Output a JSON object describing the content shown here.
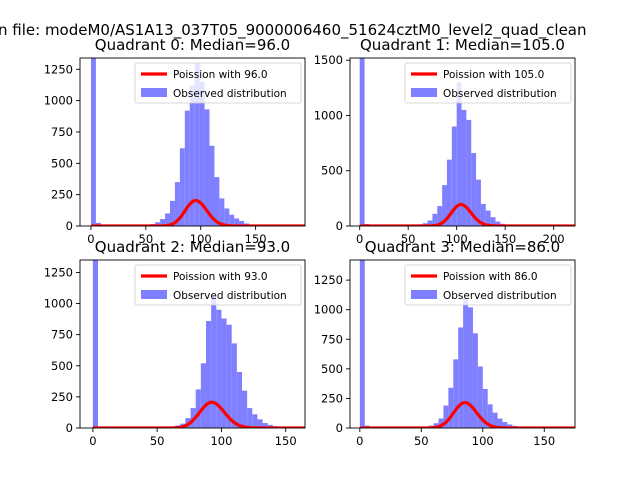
{
  "figure": {
    "suptitle": "n file: modeM0/AS1A13_037T05_9000006460_51624cztM0_level2_quad_clean",
    "background": "#ffffff"
  },
  "colors": {
    "hist": "#7f7fff",
    "poisson": "#ff0000",
    "axis": "#000000"
  },
  "chart_data": [
    {
      "type": "bar",
      "title": "Quadrant 0: Median=96.0",
      "xlim": [
        -10,
        195
      ],
      "ylim": [
        0,
        1340
      ],
      "xticks": [
        0,
        50,
        100,
        150
      ],
      "yticks": [
        0,
        250,
        500,
        750,
        1000,
        1250
      ],
      "legend": {
        "placement": "top-right",
        "entries": [
          "Poission with 96.0",
          "Observed distribution"
        ]
      },
      "poisson_mean": 96.0,
      "poisson_n": 5000,
      "bin_width": 4.5,
      "bins": [
        [
          0,
          1340
        ],
        [
          4.5,
          25
        ],
        [
          9,
          8
        ],
        [
          13.5,
          5
        ],
        [
          18,
          3
        ],
        [
          22.5,
          2
        ],
        [
          27,
          2
        ],
        [
          31.5,
          3
        ],
        [
          36,
          3
        ],
        [
          40.5,
          4
        ],
        [
          45,
          5
        ],
        [
          49.5,
          8
        ],
        [
          54,
          15
        ],
        [
          58.5,
          30
        ],
        [
          63,
          55
        ],
        [
          67.5,
          100
        ],
        [
          72,
          200
        ],
        [
          76.5,
          350
        ],
        [
          81,
          620
        ],
        [
          85.5,
          920
        ],
        [
          90,
          1120
        ],
        [
          94.5,
          1300
        ],
        [
          99,
          1150
        ],
        [
          103.5,
          930
        ],
        [
          108,
          640
        ],
        [
          112.5,
          390
        ],
        [
          117,
          220
        ],
        [
          121.5,
          140
        ],
        [
          126,
          90
        ],
        [
          130.5,
          60
        ],
        [
          135,
          40
        ],
        [
          139.5,
          20
        ],
        [
          144,
          10
        ],
        [
          148.5,
          6
        ],
        [
          153,
          4
        ],
        [
          157.5,
          3
        ],
        [
          162,
          2
        ],
        [
          166.5,
          1
        ],
        [
          171,
          1
        ],
        [
          175.5,
          1
        ],
        [
          180,
          1
        ]
      ]
    },
    {
      "type": "bar",
      "title": "Quadrant 1: Median=105.0",
      "xlim": [
        -10,
        222
      ],
      "ylim": [
        0,
        1520
      ],
      "xticks": [
        0,
        50,
        100,
        150,
        200
      ],
      "yticks": [
        0,
        500,
        1000,
        1500
      ],
      "legend": {
        "placement": "top-right",
        "entries": [
          "Poission with 105.0",
          "Observed distribution"
        ]
      },
      "poisson_mean": 105.0,
      "poisson_n": 5000,
      "bin_width": 5.0,
      "bins": [
        [
          0,
          1520
        ],
        [
          5,
          18
        ],
        [
          10,
          6
        ],
        [
          15,
          4
        ],
        [
          20,
          3
        ],
        [
          25,
          2
        ],
        [
          30,
          2
        ],
        [
          35,
          2
        ],
        [
          40,
          3
        ],
        [
          45,
          4
        ],
        [
          50,
          5
        ],
        [
          55,
          8
        ],
        [
          60,
          15
        ],
        [
          65,
          25
        ],
        [
          70,
          50
        ],
        [
          75,
          110
        ],
        [
          80,
          180
        ],
        [
          85,
          370
        ],
        [
          90,
          600
        ],
        [
          95,
          900
        ],
        [
          100,
          1300
        ],
        [
          105,
          1050
        ],
        [
          110,
          960
        ],
        [
          115,
          660
        ],
        [
          120,
          420
        ],
        [
          125,
          200
        ],
        [
          130,
          140
        ],
        [
          135,
          80
        ],
        [
          140,
          40
        ],
        [
          145,
          20
        ],
        [
          150,
          10
        ],
        [
          155,
          6
        ],
        [
          160,
          4
        ],
        [
          165,
          3
        ],
        [
          170,
          2
        ],
        [
          175,
          1
        ],
        [
          180,
          1
        ],
        [
          185,
          1
        ],
        [
          190,
          1
        ]
      ]
    },
    {
      "type": "bar",
      "title": "Quadrant 2: Median=93.0",
      "xlim": [
        -10,
        165
      ],
      "ylim": [
        0,
        1350
      ],
      "xticks": [
        0,
        50,
        100,
        150
      ],
      "yticks": [
        0,
        250,
        500,
        750,
        1000,
        1250
      ],
      "legend": {
        "placement": "top-right",
        "entries": [
          "Poission with 93.0",
          "Observed distribution"
        ]
      },
      "poisson_mean": 93.0,
      "poisson_n": 5000,
      "bin_width": 4.0,
      "bins": [
        [
          0,
          1350
        ],
        [
          4,
          5
        ],
        [
          8,
          3
        ],
        [
          12,
          2
        ],
        [
          16,
          2
        ],
        [
          20,
          1
        ],
        [
          24,
          1
        ],
        [
          28,
          1
        ],
        [
          32,
          2
        ],
        [
          36,
          2
        ],
        [
          40,
          3
        ],
        [
          44,
          3
        ],
        [
          48,
          4
        ],
        [
          52,
          5
        ],
        [
          56,
          8
        ],
        [
          60,
          12
        ],
        [
          64,
          20
        ],
        [
          68,
          35
        ],
        [
          72,
          80
        ],
        [
          76,
          160
        ],
        [
          80,
          310
        ],
        [
          84,
          520
        ],
        [
          88,
          860
        ],
        [
          92,
          1060
        ],
        [
          96,
          950
        ],
        [
          100,
          880
        ],
        [
          104,
          830
        ],
        [
          108,
          680
        ],
        [
          112,
          450
        ],
        [
          116,
          300
        ],
        [
          120,
          160
        ],
        [
          124,
          110
        ],
        [
          128,
          70
        ],
        [
          132,
          40
        ],
        [
          136,
          25
        ],
        [
          140,
          15
        ],
        [
          144,
          8
        ],
        [
          148,
          4
        ],
        [
          152,
          2
        ],
        [
          156,
          1
        ]
      ]
    },
    {
      "type": "bar",
      "title": "Quadrant 3: Median=86.0",
      "xlim": [
        -8,
        175
      ],
      "ylim": [
        0,
        1420
      ],
      "xticks": [
        0,
        50,
        100,
        150
      ],
      "yticks": [
        0,
        250,
        500,
        750,
        1000,
        1250
      ],
      "legend": {
        "placement": "top-right",
        "entries": [
          "Poission with 86.0",
          "Observed distribution"
        ]
      },
      "poisson_mean": 86.0,
      "poisson_n": 5000,
      "bin_width": 4.0,
      "bins": [
        [
          0,
          1420
        ],
        [
          4,
          20
        ],
        [
          8,
          6
        ],
        [
          12,
          3
        ],
        [
          16,
          2
        ],
        [
          20,
          2
        ],
        [
          24,
          2
        ],
        [
          28,
          2
        ],
        [
          32,
          3
        ],
        [
          36,
          3
        ],
        [
          40,
          4
        ],
        [
          44,
          5
        ],
        [
          48,
          6
        ],
        [
          52,
          10
        ],
        [
          56,
          20
        ],
        [
          60,
          40
        ],
        [
          64,
          80
        ],
        [
          68,
          190
        ],
        [
          72,
          340
        ],
        [
          76,
          580
        ],
        [
          80,
          850
        ],
        [
          84,
          1100
        ],
        [
          88,
          1020
        ],
        [
          92,
          800
        ],
        [
          96,
          520
        ],
        [
          100,
          330
        ],
        [
          104,
          200
        ],
        [
          108,
          130
        ],
        [
          112,
          80
        ],
        [
          116,
          50
        ],
        [
          120,
          30
        ],
        [
          124,
          18
        ],
        [
          128,
          10
        ],
        [
          132,
          6
        ],
        [
          136,
          4
        ],
        [
          140,
          2
        ],
        [
          144,
          2
        ],
        [
          148,
          1
        ],
        [
          152,
          1
        ]
      ]
    }
  ]
}
